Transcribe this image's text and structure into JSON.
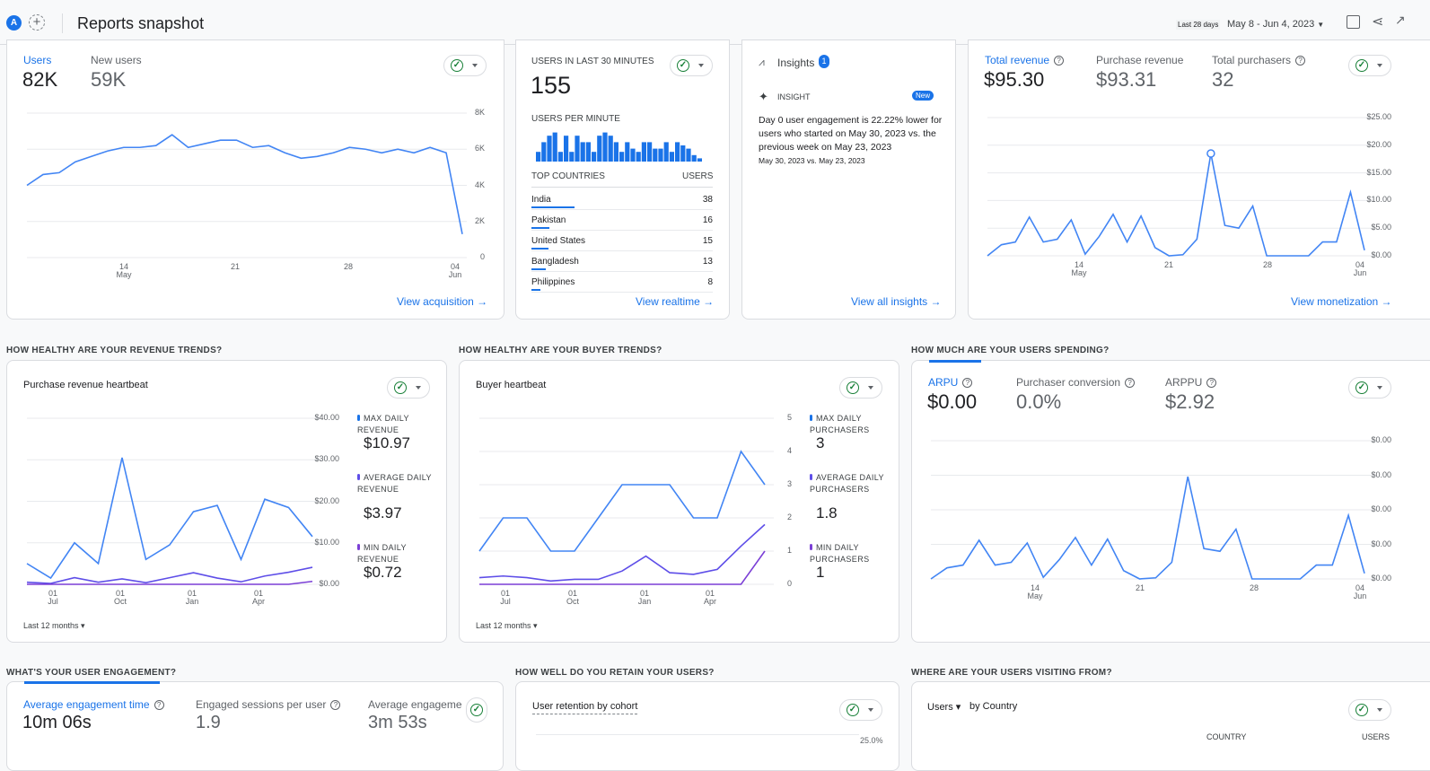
{
  "header": {
    "avatar": "A",
    "title": "Reports snapshot",
    "date_chip": "Last 28 days",
    "date_range": "May 8 - Jun 4, 2023"
  },
  "users_card": {
    "metrics": [
      {
        "label": "Users",
        "value": "82K"
      },
      {
        "label": "New users",
        "value": "59K"
      }
    ],
    "link": "View acquisition"
  },
  "realtime_card": {
    "title": "USERS IN LAST 30 MINUTES",
    "value": "155",
    "per_minute_label": "USERS PER MINUTE",
    "per_minute_bars": [
      3,
      6,
      8,
      9,
      3,
      8,
      3,
      8,
      6,
      6,
      3,
      8,
      9,
      8,
      6,
      3,
      6,
      4,
      3,
      6,
      6,
      4,
      4,
      6,
      3,
      6,
      5,
      4,
      2,
      1
    ],
    "countries_header": "TOP COUNTRIES",
    "users_header": "USERS",
    "countries": [
      {
        "name": "India",
        "value": "38"
      },
      {
        "name": "Pakistan",
        "value": "16"
      },
      {
        "name": "United States",
        "value": "15"
      },
      {
        "name": "Bangladesh",
        "value": "13"
      },
      {
        "name": "Philippines",
        "value": "8"
      }
    ],
    "link": "View realtime"
  },
  "insights_card": {
    "title": "Insights",
    "badge": "1",
    "insight_label": "INSIGHT",
    "new_badge": "New",
    "text": "Day 0 user engagement is 22.22% lower for users who started on May 30, 2023 vs. the previous week on May 23, 2023",
    "dates": "May 30, 2023 vs. May 23, 2023",
    "link": "View all insights"
  },
  "revenue_card": {
    "metrics": [
      {
        "label": "Total revenue",
        "value": "$95.30"
      },
      {
        "label": "Purchase revenue",
        "value": "$93.31"
      },
      {
        "label": "Total purchasers",
        "value": "32"
      }
    ],
    "link": "View monetization"
  },
  "sections": {
    "revenue_trends": "HOW HEALTHY ARE YOUR REVENUE TRENDS?",
    "buyer_trends": "HOW HEALTHY ARE YOUR BUYER TRENDS?",
    "spending": "HOW MUCH ARE YOUR USERS SPENDING?",
    "engagement": "WHAT'S YOUR USER ENGAGEMENT?",
    "retention": "HOW WELL DO YOU RETAIN YOUR USERS?",
    "visiting": "WHERE ARE YOUR USERS VISITING FROM?"
  },
  "revenue_heartbeat": {
    "title": "Purchase revenue heartbeat",
    "period": "Last 12 months",
    "legend": [
      {
        "label": "MAX DAILY REVENUE",
        "value": "$10.97"
      },
      {
        "label": "AVERAGE DAILY REVENUE",
        "value": "$3.97"
      },
      {
        "label": "MIN DAILY REVENUE",
        "value": "$0.72"
      }
    ]
  },
  "buyer_heartbeat": {
    "title": "Buyer heartbeat",
    "period": "Last 12 months",
    "legend": [
      {
        "label": "MAX DAILY PURCHASERS",
        "value": "3"
      },
      {
        "label": "AVERAGE DAILY PURCHASERS",
        "value": "1.8"
      },
      {
        "label": "MIN DAILY PURCHASERS",
        "value": "1"
      }
    ]
  },
  "spending_card": {
    "metrics": [
      {
        "label": "ARPU",
        "value": "$0.00"
      },
      {
        "label": "Purchaser conversion",
        "value": "0.0%"
      },
      {
        "label": "ARPPU",
        "value": "$2.92"
      }
    ]
  },
  "engagement_card": {
    "metrics": [
      {
        "label": "Average engagement time",
        "value": "10m 06s"
      },
      {
        "label": "Engaged sessions per user",
        "value": "1.9"
      },
      {
        "label": "Average engagemer",
        "value": "3m 53s"
      }
    ]
  },
  "retention_card": {
    "title": "User retention by cohort",
    "tick": "25.0%"
  },
  "visiting_card": {
    "metric": "Users",
    "by": "by Country",
    "country_header": "COUNTRY",
    "users_header": "USERS"
  },
  "colors": {
    "accent": "#1a73e8",
    "line": "#4285f4",
    "avg": "#5e4ee8",
    "min": "#7b3fd6",
    "check": "#188038"
  },
  "chart_data": [
    {
      "type": "line",
      "name": "users",
      "x_ticks": [
        [
          "14",
          "May"
        ],
        [
          "21",
          ""
        ],
        [
          "28",
          ""
        ],
        [
          "04",
          "Jun"
        ]
      ],
      "y_ticks": [
        "8K",
        "6K",
        "4K",
        "2K",
        "0"
      ],
      "ylim": [
        0,
        8000
      ],
      "series": [
        {
          "values": [
            4000,
            4600,
            4700,
            5300,
            5600,
            5900,
            6100,
            6100,
            6200,
            6800,
            6100,
            6300,
            6500,
            6500,
            6100,
            6200,
            5800,
            5500,
            5600,
            5800,
            6100,
            6000,
            5800,
            6000,
            5800,
            6100,
            5800,
            1300
          ]
        }
      ]
    },
    {
      "type": "line",
      "name": "total-revenue",
      "x_ticks": [
        [
          "14",
          "May"
        ],
        [
          "21",
          ""
        ],
        [
          "28",
          ""
        ],
        [
          "04",
          "Jun"
        ]
      ],
      "y_ticks": [
        "$25.00",
        "$20.00",
        "$15.00",
        "$10.00",
        "$5.00",
        "$0.00"
      ],
      "ylim": [
        0,
        25
      ],
      "series": [
        {
          "values": [
            0,
            2,
            2.5,
            7,
            2.5,
            3,
            6.5,
            0.3,
            3.5,
            7.5,
            2.5,
            7.2,
            1.5,
            0,
            0.2,
            3,
            18.5,
            5.5,
            5,
            9,
            0,
            0,
            0,
            0,
            2.5,
            2.5,
            11.5,
            1
          ]
        }
      ]
    },
    {
      "type": "line",
      "name": "purchase-revenue-heartbeat",
      "x_ticks": [
        [
          "01",
          "Jul"
        ],
        [
          "01",
          "Oct"
        ],
        [
          "01",
          "Jan"
        ],
        [
          "01",
          "Apr"
        ]
      ],
      "y_ticks": [
        "$40.00",
        "$30.00",
        "$20.00",
        "$10.00",
        "$0.00"
      ],
      "ylim": [
        0,
        40
      ],
      "series": [
        {
          "name": "MAX DAILY REVENUE",
          "values": [
            5,
            1.5,
            10,
            5,
            30.5,
            6,
            9.5,
            17.5,
            19,
            6,
            20.5,
            18.5,
            11.5
          ]
        },
        {
          "name": "AVERAGE DAILY REVENUE",
          "values": [
            0.5,
            0.2,
            1.6,
            0.5,
            1.3,
            0.4,
            1.6,
            2.8,
            1.5,
            0.6,
            2,
            2.9,
            4.1
          ]
        },
        {
          "name": "MIN DAILY REVENUE",
          "values": [
            0,
            0,
            0,
            0,
            0,
            0,
            0,
            0,
            0,
            0,
            0,
            0,
            0.7
          ]
        }
      ]
    },
    {
      "type": "line",
      "name": "buyer-heartbeat",
      "x_ticks": [
        [
          "01",
          "Jul"
        ],
        [
          "01",
          "Oct"
        ],
        [
          "01",
          "Jan"
        ],
        [
          "01",
          "Apr"
        ]
      ],
      "y_ticks": [
        "5",
        "4",
        "3",
        "2",
        "1",
        "0"
      ],
      "ylim": [
        0,
        5
      ],
      "series": [
        {
          "name": "MAX DAILY PURCHASERS",
          "values": [
            1,
            2,
            2,
            1,
            1,
            2,
            3,
            3,
            3,
            2,
            2,
            4,
            3
          ]
        },
        {
          "name": "AVERAGE DAILY PURCHASERS",
          "values": [
            0.2,
            0.25,
            0.2,
            0.1,
            0.15,
            0.15,
            0.4,
            0.85,
            0.35,
            0.3,
            0.45,
            1.15,
            1.8
          ]
        },
        {
          "name": "MIN DAILY PURCHASERS",
          "values": [
            0,
            0,
            0,
            0,
            0,
            0,
            0,
            0,
            0,
            0,
            0,
            0,
            1
          ]
        }
      ]
    },
    {
      "type": "line",
      "name": "arpu",
      "x_ticks": [
        [
          "14",
          "May"
        ],
        [
          "21",
          ""
        ],
        [
          "28",
          ""
        ],
        [
          "04",
          "Jun"
        ]
      ],
      "y_ticks": [
        "$0.00",
        "$0.00",
        "$0.00",
        "$0.00",
        "$0.00"
      ],
      "ylim": [
        0,
        25
      ],
      "series": [
        {
          "values": [
            0,
            2,
            2.5,
            7,
            2.5,
            3,
            6.5,
            0.3,
            3.5,
            7.5,
            2.5,
            7.2,
            1.5,
            0,
            0.2,
            3,
            18.5,
            5.5,
            5,
            9,
            0,
            0,
            0,
            0,
            2.5,
            2.5,
            11.5,
            1
          ]
        }
      ]
    }
  ]
}
